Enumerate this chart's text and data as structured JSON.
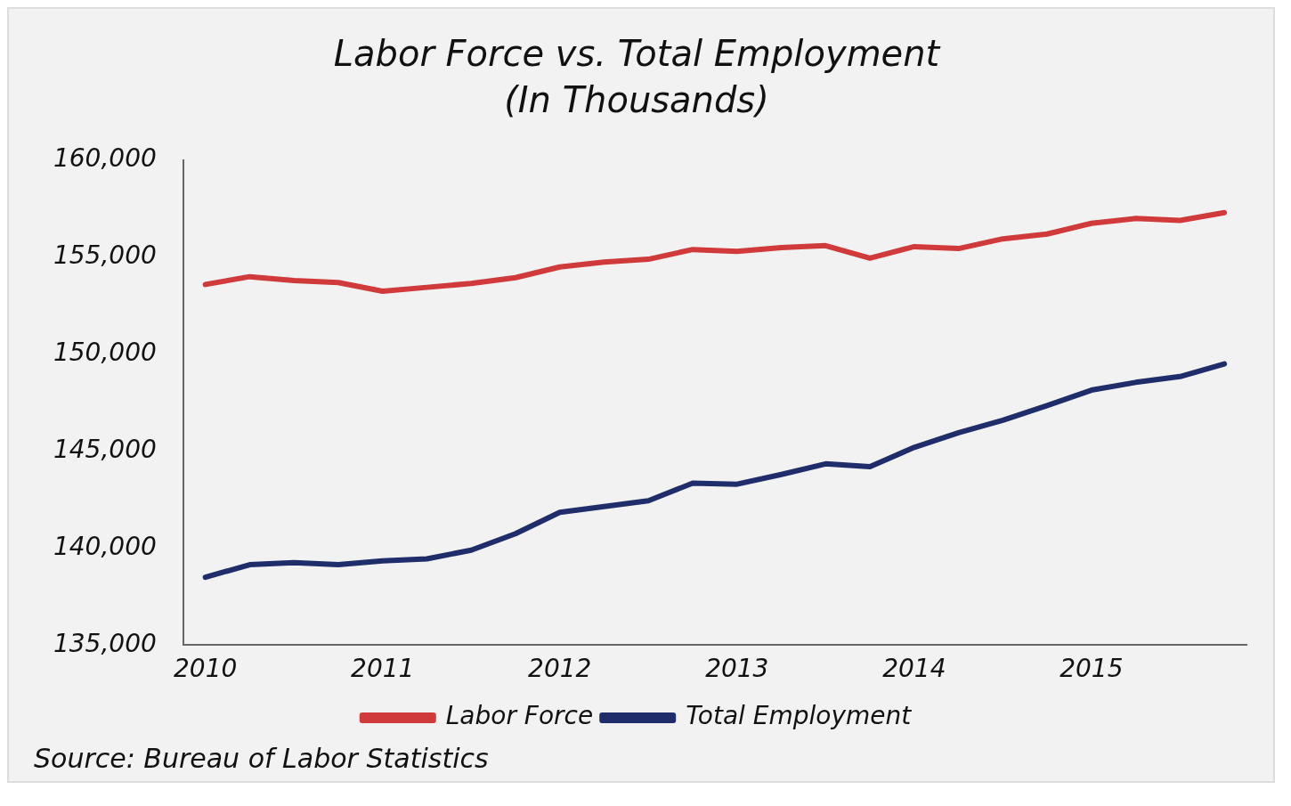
{
  "chart_data": {
    "type": "line",
    "title": "Labor Force vs. Total Employment",
    "subtitle": "(In Thousands)",
    "categories": [
      "2010",
      null,
      null,
      null,
      "2011",
      null,
      null,
      null,
      "2012",
      null,
      null,
      null,
      "2013",
      null,
      null,
      null,
      "2014",
      null,
      null,
      null,
      "2015",
      null,
      null,
      null
    ],
    "series": [
      {
        "name": "Labor Force",
        "color": "#d03a3a",
        "values": [
          153600,
          154000,
          153800,
          153700,
          153250,
          153450,
          153650,
          153950,
          154500,
          154750,
          154900,
          155400,
          155300,
          155500,
          155600,
          154950,
          155550,
          155450,
          155950,
          156200,
          156750,
          157000,
          156900,
          157300
        ]
      },
      {
        "name": "Total Employment",
        "color": "#1f2d6b",
        "values": [
          138500,
          139150,
          139250,
          139150,
          139350,
          139450,
          139900,
          140750,
          141850,
          142150,
          142450,
          143350,
          143300,
          143800,
          144350,
          144200,
          145200,
          145950,
          146600,
          147350,
          148150,
          148550,
          148850,
          149500
        ]
      }
    ],
    "ylim": [
      135000,
      160000
    ],
    "yticks": [
      {
        "value": 135000,
        "label": "135,000"
      },
      {
        "value": 140000,
        "label": "140,000"
      },
      {
        "value": 145000,
        "label": "145,000"
      },
      {
        "value": 150000,
        "label": "150,000"
      },
      {
        "value": 155000,
        "label": "155,000"
      },
      {
        "value": 160000,
        "label": "160,000"
      }
    ],
    "grid": false,
    "legend": "bottom",
    "marker": "none",
    "line_style": "solid",
    "annotations": [
      "Source: Bureau of Labor Statistics"
    ]
  }
}
